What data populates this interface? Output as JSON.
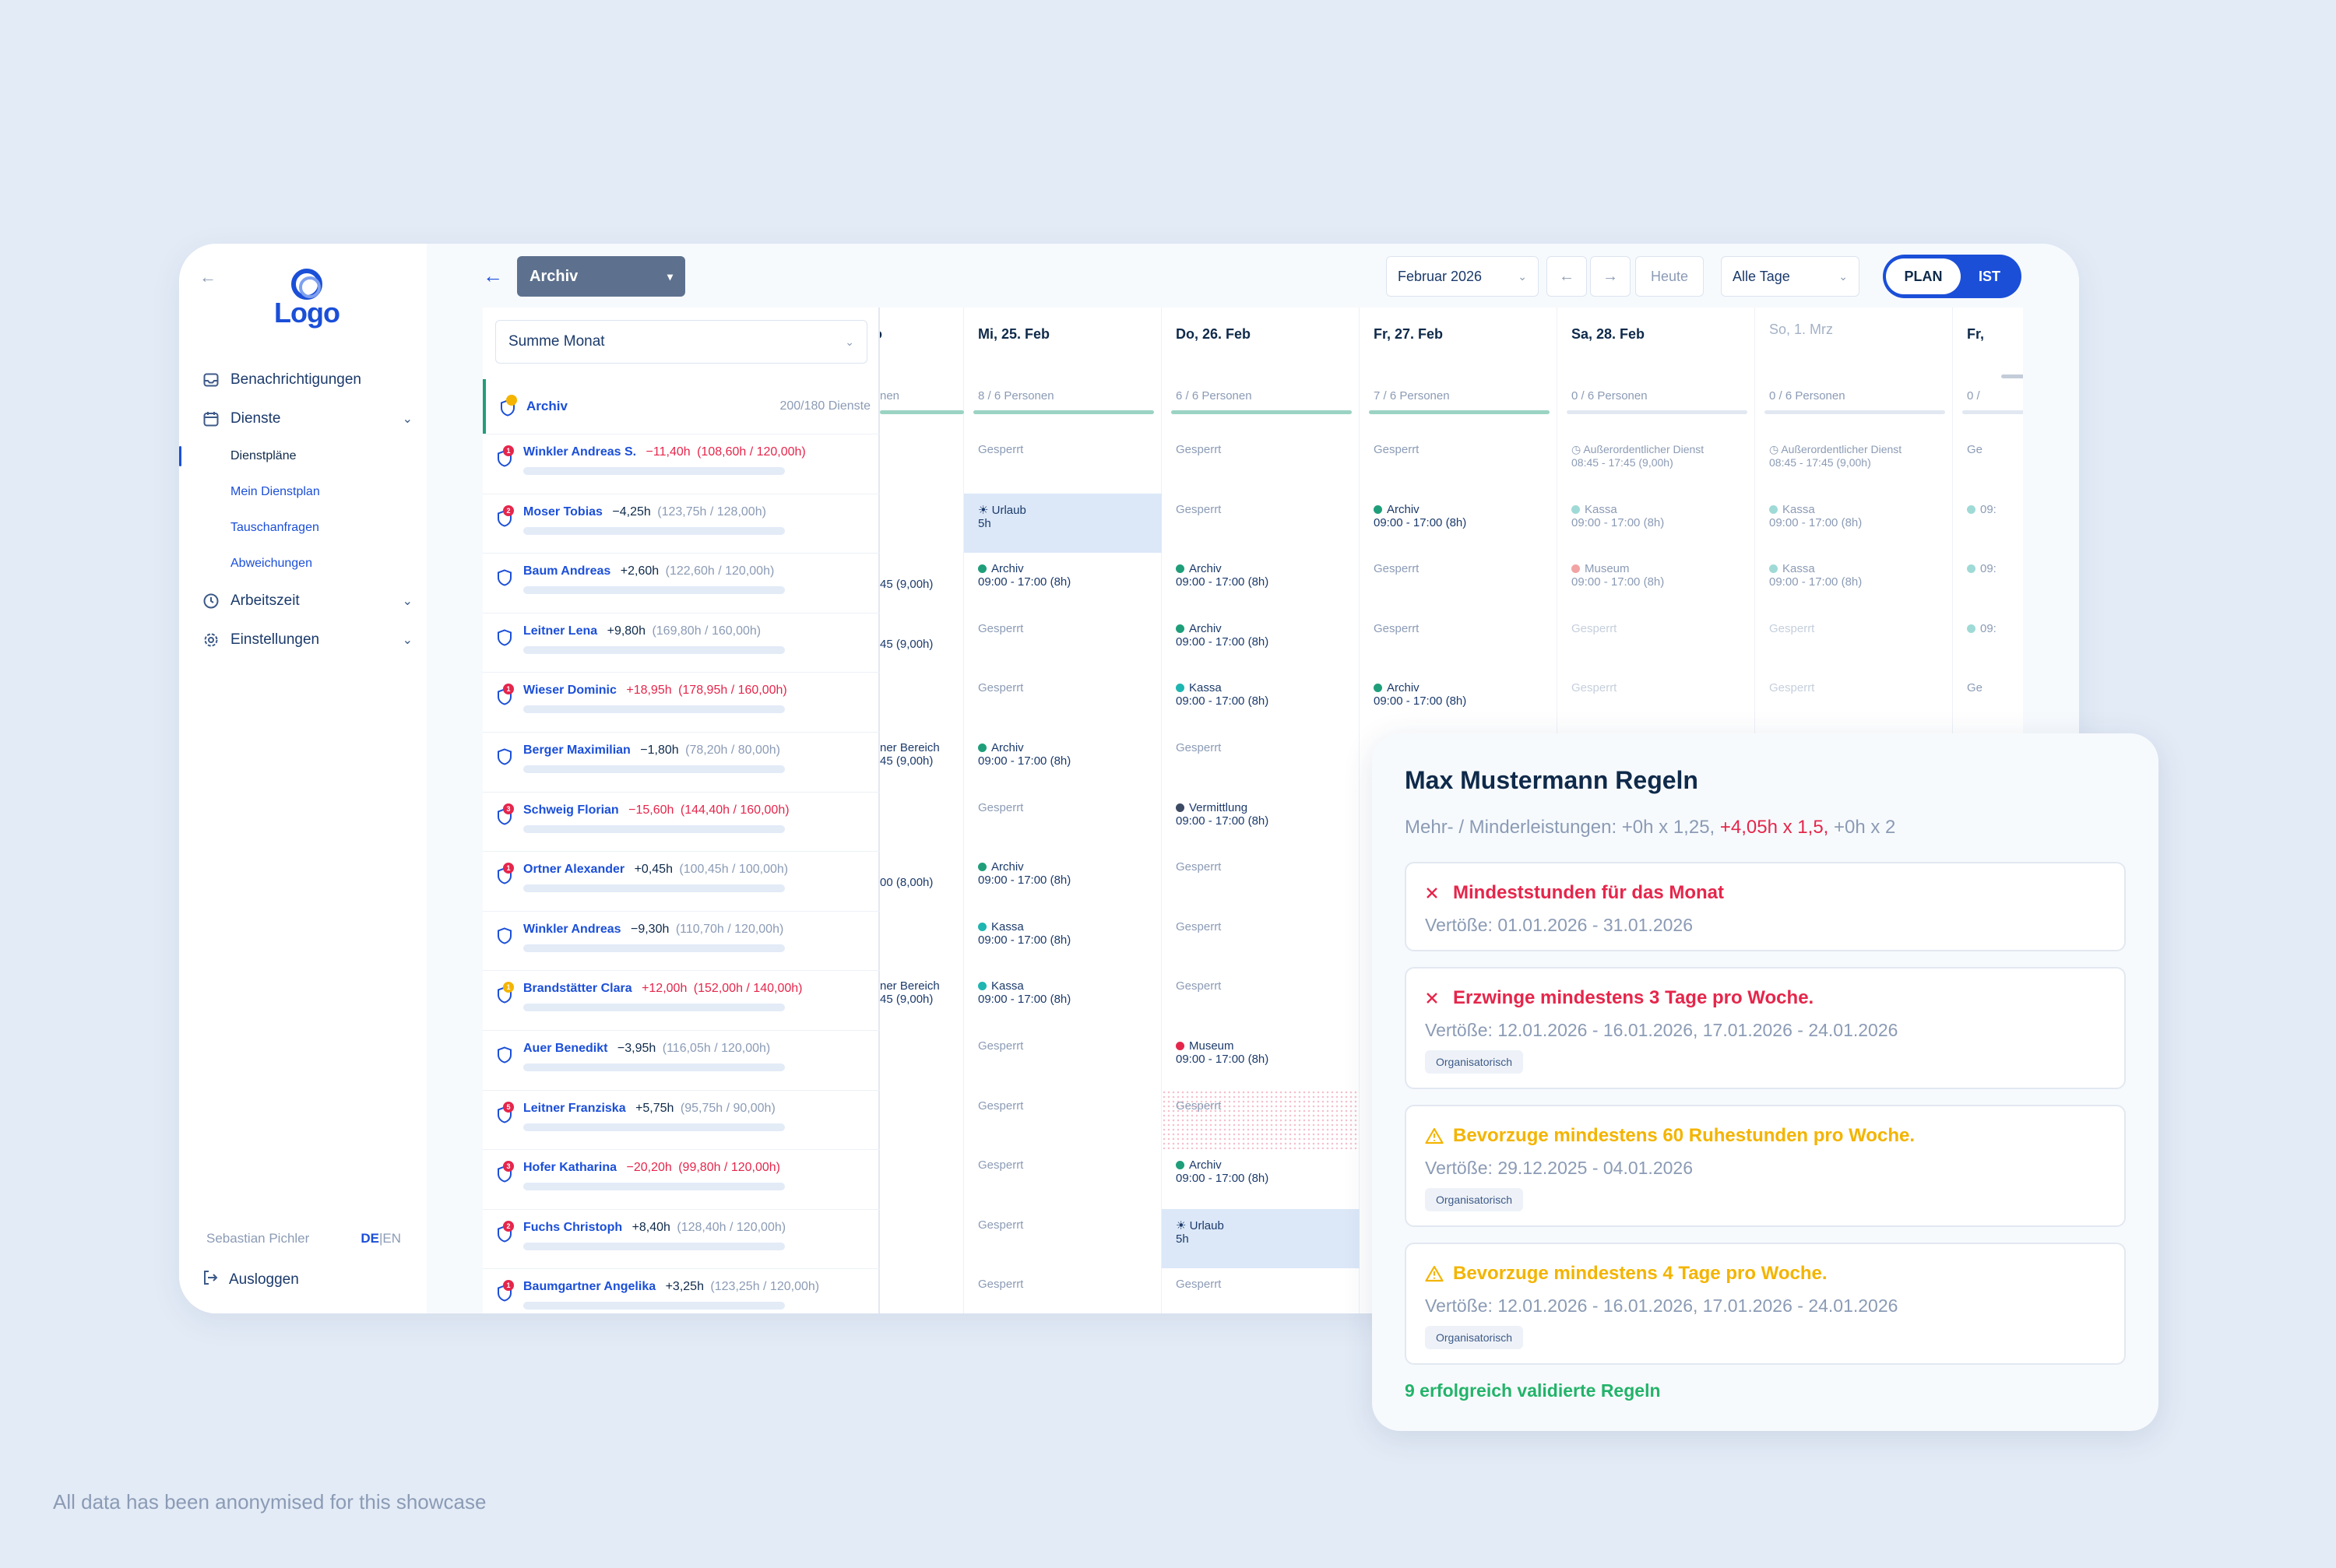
{
  "sidebar": {
    "logo": "Logo",
    "nav": [
      {
        "label": "Benachrichtigungen",
        "icon": "inbox-icon"
      },
      {
        "label": "Dienste",
        "icon": "calendar-icon"
      }
    ],
    "sub": [
      "Dienstpläne",
      "Mein Dienstplan",
      "Tauschanfragen",
      "Abweichungen"
    ],
    "nav2": [
      {
        "label": "Arbeitszeit",
        "icon": "clock-icon"
      },
      {
        "label": "Einstellungen",
        "icon": "gear-icon"
      }
    ],
    "user": "Sebastian Pichler",
    "lang_de": "DE",
    "lang_sep": "|",
    "lang_en": "EN",
    "logout": "Ausloggen"
  },
  "topbar": {
    "plan_select": "Archiv",
    "month": "Februar 2026",
    "prev": "←",
    "next": "→",
    "today": "Heute",
    "days": "Alle Tage",
    "toggle_on": "PLAN",
    "toggle_off": "IST"
  },
  "grid": {
    "sum_select": "Summe Monat",
    "archiv_row": {
      "name": "Archiv",
      "count": "200/180 Dienste"
    },
    "employees": [
      {
        "name": "Winkler Andreas S.",
        "delta": "−11,40h",
        "detail": "(108,60h / 120,00h)",
        "neg": true,
        "badge": "1",
        "badge_color": "red"
      },
      {
        "name": "Moser Tobias",
        "delta": "−4,25h",
        "detail": "(123,75h / 128,00h)",
        "neg": false,
        "badge": "2",
        "badge_color": "red"
      },
      {
        "name": "Baum Andreas",
        "delta": "+2,60h",
        "detail": "(122,60h / 120,00h)",
        "neg": false,
        "badge": "",
        "badge_color": ""
      },
      {
        "name": "Leitner Lena",
        "delta": "+9,80h",
        "detail": "(169,80h / 160,00h)",
        "neg": false,
        "badge": "",
        "badge_color": ""
      },
      {
        "name": "Wieser Dominic",
        "delta": "+18,95h",
        "detail": "(178,95h / 160,00h)",
        "neg": true,
        "badge": "1",
        "badge_color": "red"
      },
      {
        "name": "Berger Maximilian",
        "delta": "−1,80h",
        "detail": "(78,20h / 80,00h)",
        "neg": false,
        "badge": "",
        "badge_color": ""
      },
      {
        "name": "Schweig Florian",
        "delta": "−15,60h",
        "detail": "(144,40h / 160,00h)",
        "neg": true,
        "badge": "3",
        "badge_color": "red"
      },
      {
        "name": "Ortner Alexander",
        "delta": "+0,45h",
        "detail": "(100,45h / 100,00h)",
        "neg": false,
        "badge": "1",
        "badge_color": "red"
      },
      {
        "name": "Winkler Andreas",
        "delta": "−9,30h",
        "detail": "(110,70h / 120,00h)",
        "neg": false,
        "badge": "",
        "badge_color": ""
      },
      {
        "name": "Brandstätter Clara",
        "delta": "+12,00h",
        "detail": "(152,00h / 140,00h)",
        "neg": true,
        "badge": "1",
        "badge_color": "yellow"
      },
      {
        "name": "Auer Benedikt",
        "delta": "−3,95h",
        "detail": "(116,05h / 120,00h)",
        "neg": false,
        "badge": "",
        "badge_color": ""
      },
      {
        "name": "Leitner Franziska",
        "delta": "+5,75h",
        "detail": "(95,75h / 90,00h)",
        "neg": false,
        "badge": "5",
        "badge_color": "red"
      },
      {
        "name": "Hofer Katharina",
        "delta": "−20,20h",
        "detail": "(99,80h / 120,00h)",
        "neg": true,
        "badge": "3",
        "badge_color": "red"
      },
      {
        "name": "Fuchs Christoph",
        "delta": "+8,40h",
        "detail": "(128,40h / 120,00h)",
        "neg": false,
        "badge": "2",
        "badge_color": "red"
      },
      {
        "name": "Baumgartner Angelika",
        "delta": "+3,25h",
        "detail": "(123,25h / 120,00h)",
        "neg": false,
        "badge": "1",
        "badge_color": "red"
      }
    ],
    "partial_col": {
      "head": "o",
      "staff": "nen",
      "cells": [
        "",
        "",
        "45 (9,00h)",
        "45 (9,00h)",
        "",
        "ner Bereich|45 (9,00h)",
        "",
        "00 (8,00h)",
        "",
        "ner Bereich|45 (9,00h)",
        "",
        "",
        "",
        "",
        ""
      ]
    },
    "days": [
      {
        "head": "Mi, 25. Feb",
        "staff": "8 / 6 Personen",
        "cells": [
          "Gesperrt",
          "vac|Urlaub|5h",
          "green|Archiv|09:00 - 17:00 (8h)",
          "Gesperrt",
          "Gesperrt",
          "green|Archiv|09:00 - 17:00 (8h)",
          "Gesperrt",
          "green|Archiv|09:00 - 17:00 (8h)",
          "teal|Kassa|09:00 - 17:00 (8h)",
          "teal|Kassa|09:00 - 17:00 (8h)",
          "Gesperrt",
          "Gesperrt",
          "Gesperrt",
          "Gesperrt",
          "Gesperrt"
        ]
      },
      {
        "head": "Do, 26. Feb",
        "staff": "6 / 6 Personen",
        "cells": [
          "Gesperrt",
          "Gesperrt",
          "green|Archiv|09:00 - 17:00 (8h)",
          "green|Archiv|09:00 - 17:00 (8h)",
          "teal|Kassa|09:00 - 17:00 (8h)",
          "Gesperrt",
          "navy|Vermittlung|09:00 - 17:00 (8h)",
          "Gesperrt",
          "Gesperrt",
          "Gesperrt",
          "red|Museum|09:00 - 17:00 (8h)",
          "hatch|Gesperrt",
          "green|Archiv|09:00 - 17:00 (8h)",
          "vac|Urlaub|5h",
          "Gesperrt"
        ]
      },
      {
        "head": "Fr, 27. Feb",
        "staff": "7 / 6 Personen",
        "cells": [
          "Gesperrt",
          "green|Archiv|09:00 - 17:00 (8h)",
          "Gesperrt",
          "Gesperrt",
          "green|Archiv|09:00 - 17:00 (8h)",
          "",
          "",
          "",
          "",
          "",
          "",
          "",
          "",
          "",
          ""
        ]
      },
      {
        "head": "Sa, 28. Feb",
        "staff": "0 / 6 Personen",
        "cells": [
          "extra|Außerordentlicher Dienst|08:45 - 17:45 (9,00h)",
          "lteal|Kassa|09:00 - 17:00 (8h)",
          "lred|Museum|09:00 - 17:00 (8h)",
          "faint|Gesperrt",
          "faint|Gesperrt",
          "",
          "",
          "",
          "",
          "",
          "",
          "",
          "",
          "",
          ""
        ]
      },
      {
        "head": "So, 1. Mrz",
        "staff": "0 / 6 Personen",
        "muted": true,
        "cells": [
          "extra|Außerordentlicher Dienst|08:45 - 17:45 (9,00h)",
          "lteal|Kassa|09:00 - 17:00 (8h)",
          "lteal|Kassa|09:00 - 17:00 (8h)",
          "faint|Gesperrt",
          "faint|Gesperrt",
          "",
          "",
          "",
          "",
          "",
          "",
          "",
          "",
          "",
          ""
        ]
      },
      {
        "head": "Fr,",
        "staff": "0 /",
        "cells": [
          "Ge",
          "lteal|09:",
          "lteal|09:",
          "lteal|09:",
          "Ge",
          "",
          "",
          "",
          "",
          "",
          "",
          "",
          "",
          "",
          ""
        ]
      }
    ]
  },
  "rules": {
    "title": "Max Mustermann Regeln",
    "sub_prefix": "Mehr- / Minderleistungen: +0h x 1,25, ",
    "sub_red": "+4,05h x 1,5,",
    "sub_suffix": " +0h x 2",
    "items": [
      {
        "type": "error",
        "title": "Mindeststunden für das Monat",
        "text": "Vertöße: 01.01.2026 - 31.01.2026",
        "tag": ""
      },
      {
        "type": "error",
        "title": "Erzwinge mindestens 3 Tage pro Woche.",
        "text": "Vertöße: 12.01.2026 - 16.01.2026, 17.01.2026 - 24.01.2026",
        "tag": "Organisatorisch"
      },
      {
        "type": "warning",
        "title": "Bevorzuge mindestens 60 Ruhestunden pro Woche.",
        "text": "Vertöße: 29.12.2025 - 04.01.2026",
        "tag": "Organisatorisch"
      },
      {
        "type": "warning",
        "title": "Bevorzuge mindestens 4 Tage pro Woche.",
        "text": "Vertöße: 12.01.2026 - 16.01.2026, 17.01.2026 - 24.01.2026",
        "tag": "Organisatorisch"
      }
    ],
    "footer": "9 erfolgreich validierte Regeln"
  },
  "disclaimer": "All data has been anonymised for this showcase",
  "colors": {
    "primary": "#1b4fd8",
    "green": "#1f9e7a",
    "teal": "#1fb5b0",
    "navy": "#3c4a63",
    "red": "#e5264b",
    "warning": "#f3b400",
    "success": "#23b36a"
  }
}
